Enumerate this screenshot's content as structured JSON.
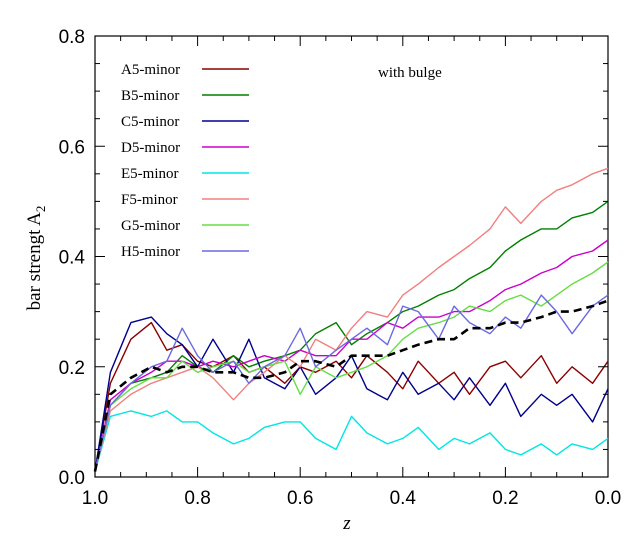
{
  "chart_data": {
    "type": "line",
    "xlabel": "z",
    "ylabel": "bar strengt A",
    "ylabel_sub": "2",
    "annotation": "with bulge",
    "xlim": [
      1.0,
      0.0
    ],
    "ylim": [
      0.0,
      0.8
    ],
    "xticks": [
      1.0,
      0.8,
      0.6,
      0.4,
      0.2,
      0.0
    ],
    "xtick_labels": [
      "1.0",
      "0.8",
      "0.6",
      "0.4",
      "0.2",
      "0.0"
    ],
    "yticks": [
      0.0,
      0.2,
      0.4,
      0.6,
      0.8
    ],
    "ytick_labels": [
      "0.0",
      "0.2",
      "0.4",
      "0.6",
      "0.8"
    ],
    "grid": false,
    "legend_position": "top-left",
    "series": [
      {
        "name": "A5-minor",
        "color": "#8b0000",
        "x": [
          1.0,
          0.97,
          0.93,
          0.89,
          0.86,
          0.83,
          0.8,
          0.77,
          0.73,
          0.7,
          0.67,
          0.63,
          0.6,
          0.57,
          0.53,
          0.5,
          0.47,
          0.43,
          0.4,
          0.37,
          0.33,
          0.3,
          0.27,
          0.23,
          0.2,
          0.17,
          0.13,
          0.1,
          0.07,
          0.03,
          0.0
        ],
        "values": [
          0.01,
          0.17,
          0.25,
          0.28,
          0.23,
          0.24,
          0.21,
          0.2,
          0.22,
          0.19,
          0.2,
          0.17,
          0.2,
          0.19,
          0.21,
          0.18,
          0.22,
          0.19,
          0.16,
          0.21,
          0.17,
          0.19,
          0.15,
          0.2,
          0.21,
          0.18,
          0.22,
          0.17,
          0.2,
          0.17,
          0.21
        ]
      },
      {
        "name": "B5-minor",
        "color": "#008000",
        "x": [
          1.0,
          0.97,
          0.93,
          0.89,
          0.86,
          0.83,
          0.8,
          0.77,
          0.73,
          0.7,
          0.67,
          0.63,
          0.6,
          0.57,
          0.53,
          0.5,
          0.47,
          0.43,
          0.4,
          0.37,
          0.33,
          0.3,
          0.27,
          0.23,
          0.2,
          0.17,
          0.13,
          0.1,
          0.07,
          0.03,
          0.0
        ],
        "values": [
          0.01,
          0.13,
          0.17,
          0.18,
          0.19,
          0.22,
          0.2,
          0.19,
          0.22,
          0.2,
          0.21,
          0.22,
          0.23,
          0.26,
          0.28,
          0.24,
          0.26,
          0.28,
          0.3,
          0.31,
          0.33,
          0.34,
          0.36,
          0.38,
          0.41,
          0.43,
          0.45,
          0.45,
          0.47,
          0.48,
          0.5
        ]
      },
      {
        "name": "C5-minor",
        "color": "#00008b",
        "x": [
          1.0,
          0.97,
          0.93,
          0.89,
          0.86,
          0.83,
          0.8,
          0.77,
          0.73,
          0.7,
          0.67,
          0.63,
          0.6,
          0.57,
          0.53,
          0.5,
          0.47,
          0.43,
          0.4,
          0.37,
          0.33,
          0.3,
          0.27,
          0.23,
          0.2,
          0.17,
          0.13,
          0.1,
          0.07,
          0.03,
          0.0
        ],
        "values": [
          0.01,
          0.19,
          0.28,
          0.29,
          0.26,
          0.24,
          0.2,
          0.25,
          0.19,
          0.25,
          0.18,
          0.16,
          0.2,
          0.15,
          0.18,
          0.22,
          0.16,
          0.14,
          0.19,
          0.15,
          0.17,
          0.14,
          0.18,
          0.13,
          0.17,
          0.11,
          0.15,
          0.13,
          0.15,
          0.1,
          0.16
        ]
      },
      {
        "name": "D5-minor",
        "color": "#cc00cc",
        "x": [
          1.0,
          0.97,
          0.93,
          0.89,
          0.86,
          0.83,
          0.8,
          0.77,
          0.73,
          0.7,
          0.67,
          0.63,
          0.6,
          0.57,
          0.53,
          0.5,
          0.47,
          0.43,
          0.4,
          0.37,
          0.33,
          0.3,
          0.27,
          0.23,
          0.2,
          0.17,
          0.13,
          0.1,
          0.07,
          0.03,
          0.0
        ],
        "values": [
          0.01,
          0.14,
          0.17,
          0.19,
          0.21,
          0.21,
          0.2,
          0.21,
          0.2,
          0.21,
          0.22,
          0.21,
          0.23,
          0.22,
          0.22,
          0.25,
          0.25,
          0.28,
          0.27,
          0.29,
          0.29,
          0.3,
          0.3,
          0.32,
          0.34,
          0.35,
          0.37,
          0.38,
          0.4,
          0.41,
          0.43
        ]
      },
      {
        "name": "E5-minor",
        "color": "#00e5e5",
        "x": [
          1.0,
          0.97,
          0.93,
          0.89,
          0.86,
          0.83,
          0.8,
          0.77,
          0.73,
          0.7,
          0.67,
          0.63,
          0.6,
          0.57,
          0.53,
          0.5,
          0.47,
          0.43,
          0.4,
          0.37,
          0.33,
          0.3,
          0.27,
          0.23,
          0.2,
          0.17,
          0.13,
          0.1,
          0.07,
          0.03,
          0.0
        ],
        "values": [
          0.01,
          0.11,
          0.12,
          0.11,
          0.12,
          0.1,
          0.1,
          0.08,
          0.06,
          0.07,
          0.09,
          0.1,
          0.1,
          0.07,
          0.05,
          0.11,
          0.08,
          0.06,
          0.07,
          0.09,
          0.05,
          0.07,
          0.06,
          0.08,
          0.05,
          0.04,
          0.06,
          0.04,
          0.06,
          0.05,
          0.07
        ]
      },
      {
        "name": "F5-minor",
        "color": "#f08080",
        "x": [
          1.0,
          0.97,
          0.93,
          0.89,
          0.86,
          0.83,
          0.8,
          0.77,
          0.73,
          0.7,
          0.67,
          0.63,
          0.6,
          0.57,
          0.53,
          0.5,
          0.47,
          0.43,
          0.4,
          0.37,
          0.33,
          0.3,
          0.27,
          0.23,
          0.2,
          0.17,
          0.13,
          0.1,
          0.07,
          0.03,
          0.0
        ],
        "values": [
          0.01,
          0.12,
          0.15,
          0.17,
          0.18,
          0.19,
          0.2,
          0.18,
          0.14,
          0.17,
          0.19,
          0.22,
          0.2,
          0.25,
          0.23,
          0.27,
          0.3,
          0.29,
          0.33,
          0.35,
          0.38,
          0.4,
          0.42,
          0.45,
          0.49,
          0.46,
          0.5,
          0.52,
          0.53,
          0.55,
          0.56
        ]
      },
      {
        "name": "G5-minor",
        "color": "#66dd44",
        "x": [
          1.0,
          0.97,
          0.93,
          0.89,
          0.86,
          0.83,
          0.8,
          0.77,
          0.73,
          0.7,
          0.67,
          0.63,
          0.6,
          0.57,
          0.53,
          0.5,
          0.47,
          0.43,
          0.4,
          0.37,
          0.33,
          0.3,
          0.27,
          0.23,
          0.2,
          0.17,
          0.13,
          0.1,
          0.07,
          0.03,
          0.0
        ],
        "values": [
          0.01,
          0.13,
          0.16,
          0.18,
          0.18,
          0.21,
          0.19,
          0.2,
          0.21,
          0.19,
          0.2,
          0.21,
          0.15,
          0.2,
          0.18,
          0.19,
          0.2,
          0.22,
          0.25,
          0.27,
          0.28,
          0.29,
          0.31,
          0.3,
          0.32,
          0.33,
          0.31,
          0.33,
          0.35,
          0.37,
          0.39
        ]
      },
      {
        "name": "H5-minor",
        "color": "#6a6ae0",
        "x": [
          1.0,
          0.97,
          0.93,
          0.89,
          0.86,
          0.83,
          0.8,
          0.77,
          0.73,
          0.7,
          0.67,
          0.63,
          0.6,
          0.57,
          0.53,
          0.5,
          0.47,
          0.43,
          0.4,
          0.37,
          0.33,
          0.3,
          0.27,
          0.23,
          0.2,
          0.17,
          0.13,
          0.1,
          0.07,
          0.03,
          0.0
        ],
        "values": [
          0.01,
          0.13,
          0.17,
          0.2,
          0.21,
          0.27,
          0.22,
          0.19,
          0.21,
          0.17,
          0.2,
          0.22,
          0.27,
          0.2,
          0.23,
          0.25,
          0.27,
          0.24,
          0.31,
          0.3,
          0.25,
          0.31,
          0.28,
          0.26,
          0.29,
          0.27,
          0.33,
          0.3,
          0.26,
          0.31,
          0.33
        ]
      },
      {
        "name": "",
        "color": "#000000",
        "dashed": true,
        "x": [
          1.0,
          0.97,
          0.93,
          0.89,
          0.86,
          0.83,
          0.8,
          0.77,
          0.73,
          0.7,
          0.67,
          0.63,
          0.6,
          0.57,
          0.53,
          0.5,
          0.47,
          0.43,
          0.4,
          0.37,
          0.33,
          0.3,
          0.27,
          0.23,
          0.2,
          0.17,
          0.13,
          0.1,
          0.07,
          0.03,
          0.0
        ],
        "values": [
          0.01,
          0.15,
          0.18,
          0.2,
          0.19,
          0.2,
          0.2,
          0.19,
          0.19,
          0.18,
          0.18,
          0.19,
          0.21,
          0.21,
          0.2,
          0.22,
          0.22,
          0.22,
          0.23,
          0.24,
          0.25,
          0.25,
          0.27,
          0.27,
          0.28,
          0.28,
          0.29,
          0.3,
          0.3,
          0.31,
          0.32
        ]
      }
    ]
  }
}
